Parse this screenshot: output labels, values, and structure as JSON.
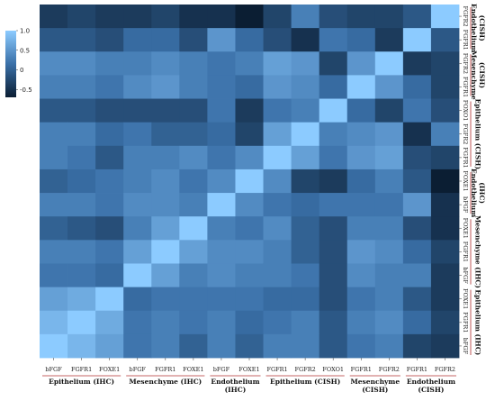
{
  "chart_data": {
    "type": "heatmap",
    "title": "",
    "xlabel": "",
    "ylabel": "",
    "x_labels": [
      "bFGF",
      "FGFR1",
      "FOXE1",
      "bFGF",
      "FGFR1",
      "FOXE1",
      "bFGF",
      "FOXE1",
      "FGFR1",
      "FGFR2",
      "FOXO1",
      "FGFR1",
      "FGFR2",
      "FGFR1",
      "FGFR2"
    ],
    "y_labels": [
      "FGFR2",
      "FGFR1",
      "FGFR2",
      "FGFR1",
      "FOXO1",
      "FGFR2",
      "FGFR1",
      "FOXE1",
      "bFGF",
      "FOXE1",
      "FGFR1",
      "bFGF",
      "FOXE1",
      "FGFR1",
      "bFGF"
    ],
    "x_groups": [
      {
        "label": "Epithelium (IHC)",
        "lines": [
          "Epithelium (IHC)"
        ],
        "span": 3
      },
      {
        "label": "Mesenchyme (IHC)",
        "lines": [
          "Mesenchyme (IHC)"
        ],
        "span": 3
      },
      {
        "label": "Endothelium (IHC)",
        "lines": [
          "Endothelium",
          "(IHC)"
        ],
        "span": 2
      },
      {
        "label": "Epithelium (CISH)",
        "lines": [
          "Epithelium (CISH)"
        ],
        "span": 3
      },
      {
        "label": "Mesenchyme (CISH)",
        "lines": [
          "Mesenchyme",
          "(CISH)"
        ],
        "span": 2
      },
      {
        "label": "Endothelium (CISH)",
        "lines": [
          "Endothelium",
          "(CISH)"
        ],
        "span": 2
      }
    ],
    "y_groups": [
      {
        "label": "Endothelium (CISH)",
        "lines": [
          "Endothelium",
          "(CISH)"
        ],
        "span": 2
      },
      {
        "label": "Mesenchyme (CISH)",
        "lines": [
          "Mesenchyme",
          "(CISH)"
        ],
        "span": 2
      },
      {
        "label": "Epithelium (CISH)",
        "lines": [
          "Epithelium (CISH)"
        ],
        "span": 3
      },
      {
        "label": "Endothelium (IHC)",
        "lines": [
          "Endothelium",
          "(IHC)"
        ],
        "span": 2
      },
      {
        "label": "Mesenchyme (IHC)",
        "lines": [
          "Mesenchyme (IHC)"
        ],
        "span": 3
      },
      {
        "label": "Epithelium (IHC)",
        "lines": [
          "Epithelium (IHC)"
        ],
        "span": 3
      }
    ],
    "values": [
      [
        -0.4,
        -0.3,
        -0.4,
        -0.4,
        -0.3,
        -0.5,
        -0.5,
        -0.7,
        -0.3,
        0.3,
        -0.2,
        -0.3,
        -0.3,
        -0.1,
        1.0
      ],
      [
        -0.1,
        -0.1,
        -0.2,
        0.1,
        0.1,
        -0.2,
        0.5,
        0.1,
        -0.2,
        -0.5,
        0.2,
        0.1,
        -0.4,
        1.0,
        -0.1
      ],
      [
        0.4,
        0.4,
        0.3,
        0.3,
        0.4,
        0.3,
        0.2,
        0.3,
        0.6,
        0.5,
        -0.3,
        0.5,
        1.0,
        -0.4,
        -0.3
      ],
      [
        0.3,
        0.3,
        0.2,
        0.4,
        0.5,
        0.3,
        0.2,
        0.1,
        0.5,
        0.4,
        0.1,
        1.0,
        0.5,
        0.1,
        -0.3
      ],
      [
        -0.1,
        -0.1,
        -0.2,
        -0.2,
        -0.2,
        -0.2,
        0.2,
        -0.4,
        0.2,
        0.3,
        1.0,
        0.1,
        -0.3,
        0.2,
        -0.2
      ],
      [
        0.3,
        0.3,
        0.1,
        0.2,
        0.0,
        0.0,
        0.1,
        -0.3,
        0.6,
        1.0,
        0.3,
        0.4,
        0.5,
        -0.5,
        0.3
      ],
      [
        0.3,
        0.2,
        -0.1,
        0.3,
        0.3,
        0.4,
        0.2,
        0.4,
        1.0,
        0.6,
        0.2,
        0.5,
        0.6,
        -0.2,
        -0.3
      ],
      [
        0.0,
        0.1,
        0.2,
        0.3,
        0.4,
        0.2,
        0.4,
        1.0,
        0.4,
        -0.3,
        -0.4,
        0.1,
        0.3,
        -0.1,
        -0.7
      ],
      [
        0.3,
        0.3,
        0.2,
        0.4,
        0.4,
        0.3,
        1.0,
        0.4,
        0.2,
        0.1,
        0.2,
        0.2,
        0.2,
        0.5,
        -0.5
      ],
      [
        0.0,
        -0.1,
        -0.2,
        0.3,
        0.6,
        1.0,
        0.3,
        0.2,
        0.4,
        0.0,
        -0.2,
        0.3,
        0.3,
        -0.2,
        -0.5
      ],
      [
        0.3,
        0.3,
        0.2,
        0.6,
        1.0,
        0.6,
        0.4,
        0.4,
        0.3,
        0.0,
        -0.2,
        0.5,
        0.4,
        0.1,
        -0.3
      ],
      [
        0.2,
        0.2,
        0.1,
        1.0,
        0.6,
        0.3,
        0.4,
        0.3,
        0.3,
        0.2,
        -0.2,
        0.4,
        0.3,
        0.3,
        -0.4
      ],
      [
        0.6,
        0.7,
        1.0,
        0.1,
        0.2,
        0.2,
        0.2,
        0.2,
        0.1,
        0.1,
        -0.2,
        0.2,
        0.3,
        -0.1,
        -0.4
      ],
      [
        0.8,
        1.0,
        0.7,
        0.2,
        0.3,
        0.2,
        0.3,
        0.1,
        0.2,
        0.3,
        -0.1,
        0.3,
        0.4,
        0.1,
        -0.3
      ],
      [
        1.0,
        0.8,
        0.6,
        0.2,
        0.3,
        0.0,
        0.3,
        0.0,
        0.3,
        0.3,
        -0.1,
        0.2,
        0.3,
        -0.3,
        -0.4
      ]
    ],
    "colorbar": {
      "min": -0.7,
      "max": 1.0,
      "ticks": [
        1.0,
        0.5,
        0,
        -0.5
      ],
      "tick_labels": [
        "1.0",
        "0.5",
        "0",
        "-0.5"
      ]
    },
    "colors": {
      "low": "#0b1e33",
      "mid": "#3a70a8",
      "high": "#8ccbff"
    },
    "grid": false,
    "legend": "left"
  }
}
